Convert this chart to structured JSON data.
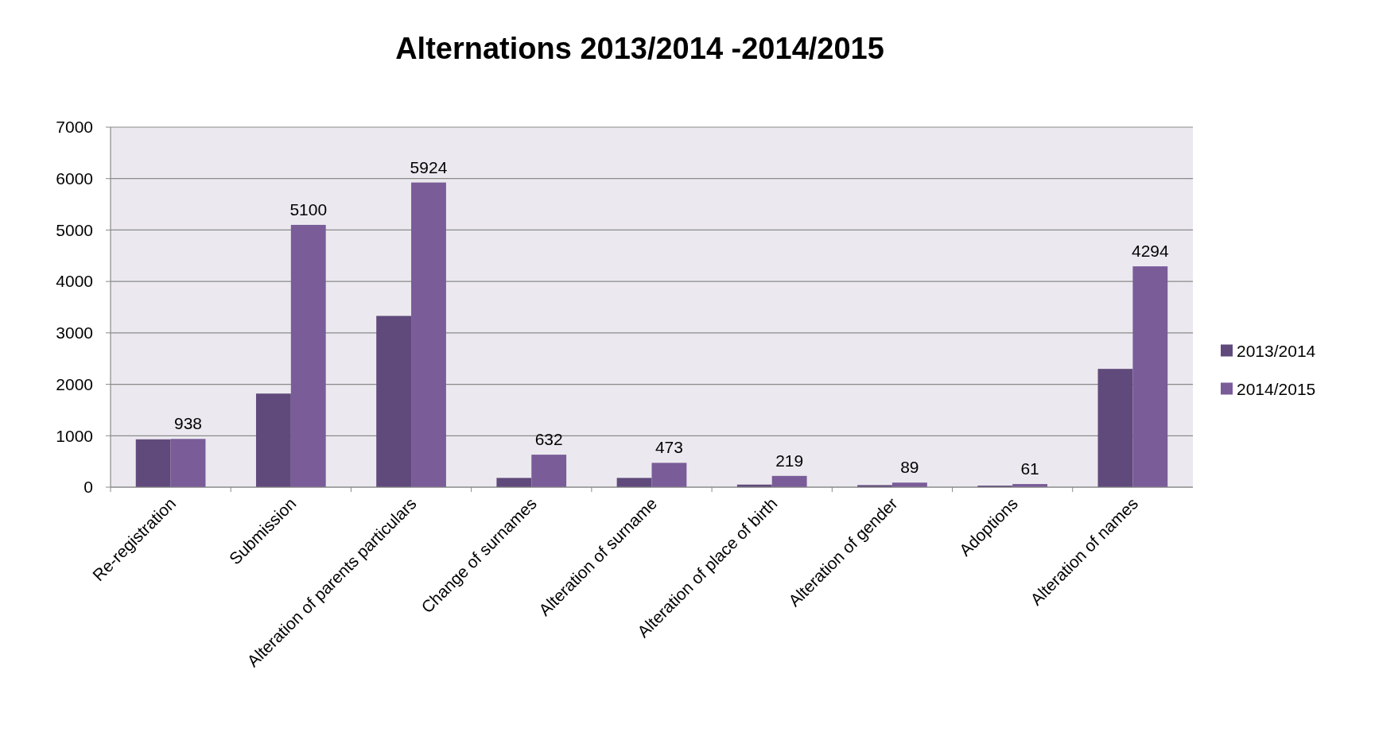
{
  "chart_data": {
    "type": "bar",
    "title": "Alternations 2013/2014 -2014/2015",
    "categories": [
      "Re-registration",
      "Submission",
      "Alteration of parents particulars",
      "Change of surnames",
      "Alteration of surname",
      "Alteration of place of birth",
      "Alteration of gender",
      "Adoptions",
      "Alteration of names"
    ],
    "series": [
      {
        "name": "2013/2014",
        "color": "#604a7b",
        "values": [
          930,
          1820,
          3330,
          180,
          180,
          50,
          40,
          30,
          2300
        ]
      },
      {
        "name": "2014/2015",
        "color": "#7a5c99",
        "values": [
          938,
          5100,
          5924,
          632,
          473,
          219,
          89,
          61,
          4294
        ],
        "value_labels": [
          "938",
          "5100",
          "5924",
          "632",
          "473",
          "219",
          "89",
          "61",
          "4294"
        ]
      }
    ],
    "ylim": [
      0,
      7000
    ],
    "yticks": [
      0,
      1000,
      2000,
      3000,
      4000,
      5000,
      6000,
      7000
    ],
    "grid": "y",
    "legend": "right"
  }
}
